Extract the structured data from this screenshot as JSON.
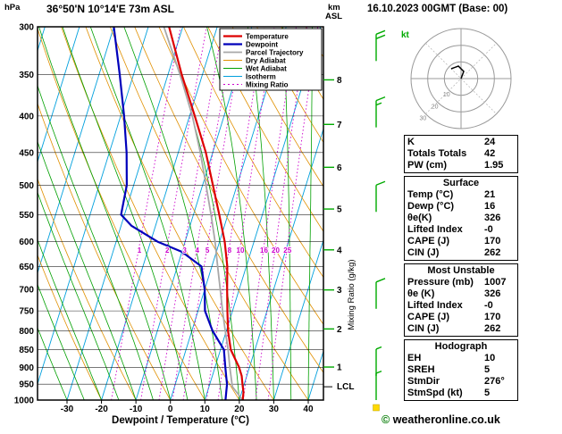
{
  "chart_data": {
    "type": "skewt_log_p_sounding",
    "title": "36°50'N 10°14'E 73m ASL",
    "pressure_unit": "hPa",
    "altitude_unit_line1": "km",
    "altitude_unit_line2": "ASL",
    "xlabel": "Dewpoint / Temperature (°C)",
    "right_axis_label": "Mixing Ratio (g/kg)",
    "lcl_label": "LCL",
    "lcl_pressure": 958,
    "pressure_ticks": [
      300,
      350,
      400,
      450,
      500,
      550,
      600,
      650,
      700,
      750,
      800,
      850,
      900,
      950,
      1000
    ],
    "temp_ticks": [
      -30,
      -20,
      -10,
      0,
      10,
      20,
      30,
      40
    ],
    "km_ticks": [
      1,
      2,
      3,
      4,
      5,
      6,
      7,
      8
    ],
    "km_tick_pressures": {
      "1": 899,
      "2": 795,
      "3": 701,
      "4": 616,
      "5": 540,
      "6": 472,
      "7": 411,
      "8": 356
    },
    "isotherm_step": 10,
    "mixing_ratio_values": [
      1,
      2,
      3,
      4,
      5,
      8,
      10,
      16,
      20,
      25
    ],
    "legend": [
      {
        "label": "Temperature",
        "color": "#dd0000",
        "width": 2.2,
        "dash": ""
      },
      {
        "label": "Dewpoint",
        "color": "#0000bb",
        "width": 2.2,
        "dash": ""
      },
      {
        "label": "Parcel Trajectory",
        "color": "#a8a8a8",
        "width": 1.8,
        "dash": ""
      },
      {
        "label": "Dry Adiabat",
        "color": "#e09000",
        "width": 1,
        "dash": ""
      },
      {
        "label": "Wet Adiabat",
        "color": "#00a000",
        "width": 1,
        "dash": ""
      },
      {
        "label": "Isotherm",
        "color": "#00a0dd",
        "width": 1,
        "dash": ""
      },
      {
        "label": "Mixing Ratio",
        "color": "#cc00cc",
        "width": 1,
        "dash": "2 3"
      }
    ],
    "series": {
      "temperature": {
        "color": "#dd0000",
        "width": 2.2,
        "points": [
          [
            1000,
            21
          ],
          [
            975,
            20.5
          ],
          [
            950,
            19.5
          ],
          [
            925,
            18.5
          ],
          [
            900,
            17
          ],
          [
            850,
            13
          ],
          [
            800,
            10.5
          ],
          [
            750,
            8.5
          ],
          [
            700,
            6.5
          ],
          [
            650,
            4.5
          ],
          [
            600,
            1.5
          ],
          [
            550,
            -2.5
          ],
          [
            500,
            -7
          ],
          [
            450,
            -12
          ],
          [
            400,
            -18.5
          ],
          [
            350,
            -26
          ],
          [
            300,
            -34
          ]
        ]
      },
      "dewpoint": {
        "color": "#0000bb",
        "width": 2.2,
        "points": [
          [
            1000,
            16
          ],
          [
            975,
            15.5
          ],
          [
            950,
            15
          ],
          [
            925,
            14
          ],
          [
            900,
            13
          ],
          [
            850,
            11
          ],
          [
            800,
            6
          ],
          [
            750,
            2
          ],
          [
            700,
            0
          ],
          [
            650,
            -3
          ],
          [
            620,
            -10
          ],
          [
            600,
            -18
          ],
          [
            570,
            -27
          ],
          [
            550,
            -31
          ],
          [
            500,
            -32
          ],
          [
            450,
            -35
          ],
          [
            400,
            -39
          ],
          [
            350,
            -44
          ],
          [
            300,
            -50
          ]
        ]
      },
      "parcel": {
        "color": "#a8a8a8",
        "width": 1.8,
        "points": [
          [
            1000,
            21
          ],
          [
            958,
            16.8
          ],
          [
            900,
            14.3
          ],
          [
            850,
            12.2
          ],
          [
            800,
            9.7
          ],
          [
            750,
            7.1
          ],
          [
            700,
            4.5
          ],
          [
            650,
            1.7
          ],
          [
            600,
            -1.3
          ],
          [
            550,
            -4.9
          ],
          [
            500,
            -9
          ],
          [
            450,
            -13.6
          ],
          [
            400,
            -19.2
          ],
          [
            350,
            -26.5
          ],
          [
            300,
            -35.5
          ]
        ]
      }
    },
    "wind_barbs_kt": [
      {
        "p": 1000,
        "spd": 5
      },
      {
        "p": 925,
        "spd": 5
      },
      {
        "p": 745,
        "spd": 10
      },
      {
        "p": 545,
        "spd": 10
      },
      {
        "p": 415,
        "spd": 15
      },
      {
        "p": 335,
        "spd": 20
      }
    ],
    "station_marker_color": "#ffd900",
    "hodograph": {
      "unit_label": "kt",
      "rings_kt": [
        10,
        20,
        30
      ],
      "trace": [
        [
          0,
          0
        ],
        [
          3,
          -8
        ],
        [
          -3,
          -14
        ],
        [
          -11,
          -11
        ]
      ]
    }
  },
  "panel": {
    "datetime": "16.10.2023 00GMT (Base: 00)",
    "sections": [
      {
        "title": null,
        "rows": [
          [
            "K",
            "24"
          ],
          [
            "Totals Totals",
            "42"
          ],
          [
            "PW (cm)",
            "1.95"
          ]
        ]
      },
      {
        "title": "Surface",
        "rows": [
          [
            "Temp (°C)",
            "21"
          ],
          [
            "Dewp (°C)",
            "16"
          ],
          [
            "θe(K)",
            "326"
          ],
          [
            "Lifted Index",
            "-0"
          ],
          [
            "CAPE (J)",
            "170"
          ],
          [
            "CIN (J)",
            "262"
          ]
        ]
      },
      {
        "title": "Most Unstable",
        "rows": [
          [
            "Pressure (mb)",
            "1007"
          ],
          [
            "θe (K)",
            "326"
          ],
          [
            "Lifted Index",
            "-0"
          ],
          [
            "CAPE (J)",
            "170"
          ],
          [
            "CIN (J)",
            "262"
          ]
        ]
      },
      {
        "title": "Hodograph",
        "rows": [
          [
            "EH",
            "10"
          ],
          [
            "SREH",
            "5"
          ],
          [
            "StmDir",
            "276°"
          ],
          [
            "StmSpd (kt)",
            "5"
          ]
        ]
      }
    ],
    "copyright_symbol": "©",
    "copyright_text": " weatheronline.co.uk"
  }
}
